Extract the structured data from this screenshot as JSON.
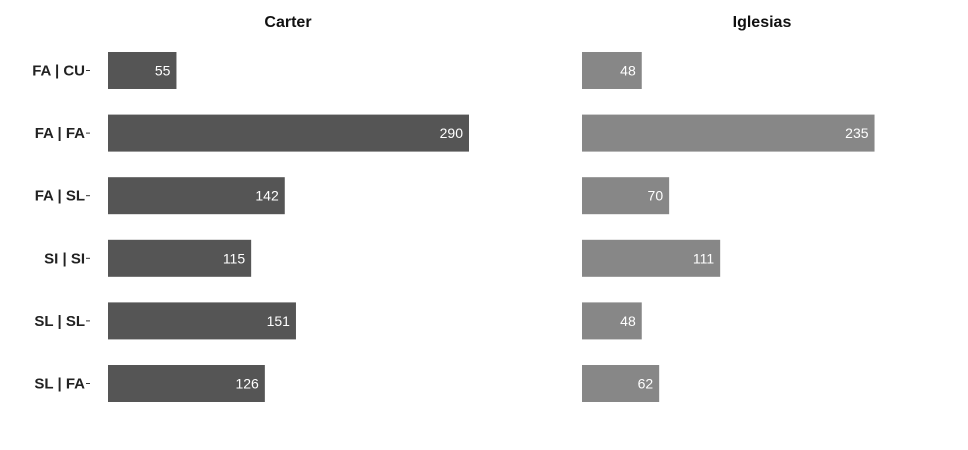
{
  "chart_data": {
    "type": "bar",
    "orientation": "horizontal",
    "categories": [
      "FA | CU",
      "FA | FA",
      "FA | SL",
      "SI | SI",
      "SL | SL",
      "SL | FA"
    ],
    "series": [
      {
        "name": "Carter",
        "values": [
          55,
          290,
          142,
          115,
          151,
          126
        ],
        "color": "#555555"
      },
      {
        "name": "Iglesias",
        "values": [
          48,
          235,
          70,
          111,
          48,
          62
        ],
        "color": "#878787"
      }
    ],
    "xlim": [
      0,
      300
    ],
    "grid": false,
    "legend": "none"
  }
}
